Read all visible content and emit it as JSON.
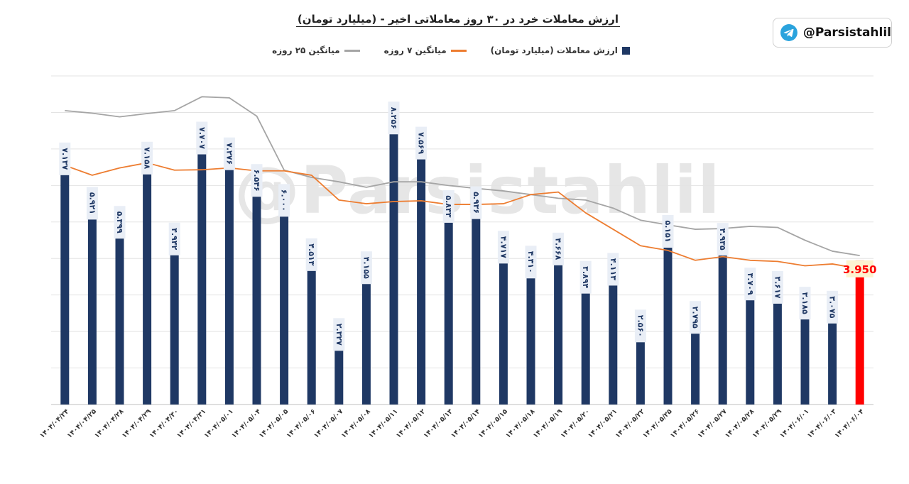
{
  "header": {
    "handle": "@Parsistahlil",
    "telegram_icon": "telegram-icon"
  },
  "chart_data": {
    "type": "bar",
    "title": "ارزش معاملات خرد در ۳۰ روز معاملاتی اخیر - (میلیارد تومان)",
    "ylim": [
      0,
      9
    ],
    "grid": true,
    "legend_position": "top-center",
    "categories": [
      "۱۴۰۴/۰۴/۲۴",
      "۱۴۰۴/۰۴/۲۵",
      "۱۴۰۴/۰۴/۲۸",
      "۱۴۰۴/۰۴/۲۹",
      "۱۴۰۴/۰۴/۳۰",
      "۱۴۰۴/۰۴/۳۱",
      "۱۴۰۴/۰۵/۰۱",
      "۱۴۰۴/۰۵/۰۴",
      "۱۴۰۴/۰۵/۰۵",
      "۱۴۰۴/۰۵/۰۶",
      "۱۴۰۴/۰۵/۰۷",
      "۱۴۰۴/۰۵/۰۸",
      "۱۴۰۴/۰۵/۱۱",
      "۱۴۰۴/۰۵/۱۲",
      "۱۴۰۴/۰۵/۱۳",
      "۱۴۰۴/۰۵/۱۴",
      "۱۴۰۴/۰۵/۱۵",
      "۱۴۰۴/۰۵/۱۸",
      "۱۴۰۴/۰۵/۱۹",
      "۱۴۰۴/۰۵/۲۰",
      "۱۴۰۴/۰۵/۲۱",
      "۱۴۰۴/۰۵/۲۲",
      "۱۴۰۴/۰۵/۲۵",
      "۱۴۰۴/۰۵/۲۶",
      "۱۴۰۴/۰۵/۲۷",
      "۱۴۰۴/۰۵/۲۸",
      "۱۴۰۴/۰۵/۲۹",
      "۱۴۰۴/۰۶/۰۱",
      "۱۴۰۴/۰۶/۰۳",
      "۱۴۰۴/۰۶/۰۴"
    ],
    "series": [
      {
        "name": "ارزش معاملات (میلیارد تومان)",
        "kind": "bar",
        "color": "#1f3864",
        "highlight_color": "#ff0000",
        "values": [
          7.137,
          5.921,
          5.399,
          7.158,
          4.942,
          7.707,
          7.276,
          6.546,
          6.0,
          4.513,
          2.327,
          4.155,
          8.256,
          7.569,
          5.833,
          5.936,
          4.717,
          4.31,
          4.668,
          3.894,
          4.113,
          2.56,
          5.151,
          2.795,
          4.935,
          3.709,
          3.617,
          3.185,
          3.075,
          3.95
        ],
        "labels": [
          "۷.۱۳۷",
          "۵.۹۲۱",
          "۵.۳۹۹",
          "۷.۱۵۸",
          "۴.۹۴۲",
          "۷.۷۰۷",
          "۷.۲۷۶",
          "۶.۵۴۶",
          "۶.۰۰۰",
          "۴.۵۱۳",
          "۲.۳۲۷",
          "۴.۱۵۵",
          "۸.۲۵۶",
          "۷.۵۶۹",
          "۵.۸۳۳",
          "۵.۹۳۶",
          "۴.۷۱۷",
          "۴.۳۱۰",
          "۴.۶۶۸",
          "۳.۸۹۴",
          "۴.۱۱۳",
          "۲.۵۶۰",
          "۵.۱۵۱",
          "۲.۷۹۵",
          "۴.۹۳۵",
          "۳.۷۰۹",
          "۳.۶۱۷",
          "۳.۱۸۵",
          "۳.۰۷۵",
          "3.950"
        ]
      },
      {
        "name": "میانگین ۷ روزه",
        "kind": "line",
        "color": "#ed7d31",
        "values": [
          6.55,
          6.28,
          6.48,
          6.62,
          6.42,
          6.43,
          6.48,
          6.4,
          6.4,
          6.28,
          5.6,
          5.5,
          5.56,
          5.58,
          5.48,
          5.48,
          5.5,
          5.75,
          5.82,
          5.25,
          4.8,
          4.35,
          4.22,
          3.95,
          4.05,
          3.95,
          3.92,
          3.8,
          3.85,
          3.72
        ]
      },
      {
        "name": "میانگین ۲۵ روزه",
        "kind": "line",
        "color": "#a5a5a5",
        "values": [
          8.05,
          7.98,
          7.88,
          7.97,
          8.05,
          8.43,
          8.4,
          7.9,
          6.42,
          6.22,
          6.1,
          5.95,
          6.1,
          6.1,
          6.0,
          5.92,
          5.85,
          5.75,
          5.65,
          5.6,
          5.38,
          5.05,
          4.92,
          4.8,
          4.82,
          4.88,
          4.85,
          4.5,
          4.2,
          4.08
        ]
      }
    ]
  }
}
